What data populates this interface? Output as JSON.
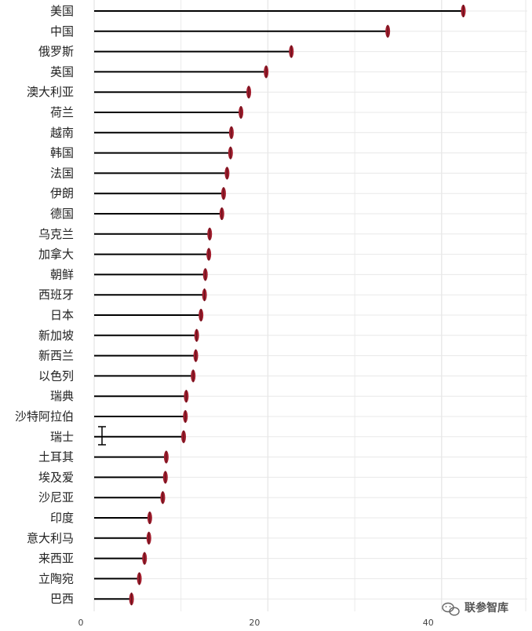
{
  "chart_data": {
    "type": "bar",
    "orientation": "horizontal",
    "mark": "lollipop",
    "categories": [
      "美国",
      "中国",
      "俄罗斯",
      "英国",
      "澳大利亚",
      "荷兰",
      "越南",
      "韩国",
      "法国",
      "伊朗",
      "德国",
      "乌克兰",
      "加拿大",
      "朝鲜",
      "西班牙",
      "日本",
      "新加坡",
      "新西兰",
      "以色列",
      "瑞典",
      "沙特阿拉伯",
      "瑞士",
      "土耳其",
      "埃及爱",
      "沙尼亚",
      "印度",
      "意大利马",
      "来西亚",
      "立陶宛",
      "巴西"
    ],
    "values": [
      42.5,
      33.8,
      22.7,
      19.8,
      17.8,
      16.9,
      15.8,
      15.7,
      15.3,
      14.9,
      14.7,
      13.3,
      13.2,
      12.8,
      12.7,
      12.3,
      11.8,
      11.7,
      11.4,
      10.6,
      10.5,
      10.3,
      8.3,
      8.2,
      7.9,
      6.4,
      6.3,
      5.8,
      5.2,
      4.3
    ],
    "x_ticks": [
      "0",
      "20",
      "40"
    ],
    "xlim": [
      -1.5,
      50
    ],
    "grid": true,
    "colors": {
      "line": "#000000",
      "marker": "#a21e2e",
      "grid": "#e8e8e8"
    }
  },
  "watermark": {
    "icon": "wechat-icon",
    "text": "联参智库"
  }
}
